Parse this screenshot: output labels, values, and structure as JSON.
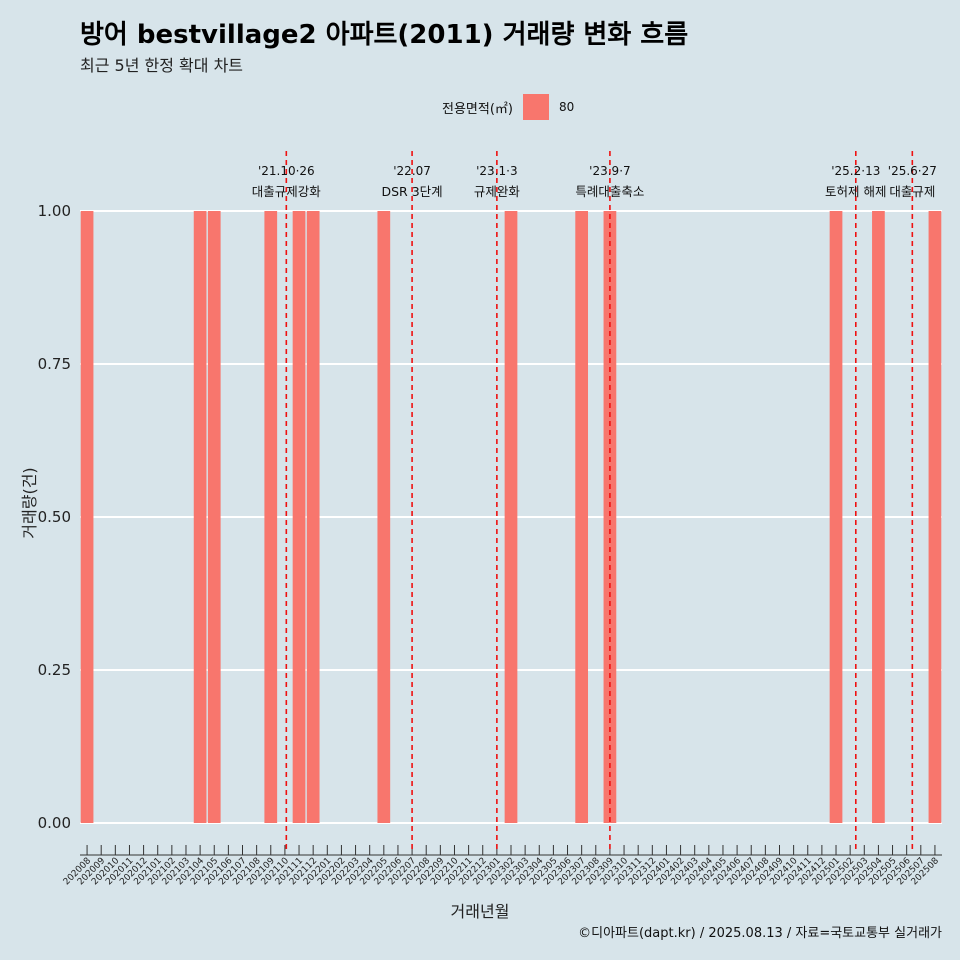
{
  "title": "방어 bestvillage2 아파트(2011) 거래량 변화 흐름",
  "subtitle": "최근 5년 한정 확대 차트",
  "legend": {
    "title": "전용면적(㎡)",
    "label": "80",
    "color": "#f8766d"
  },
  "caption": "©디아파트(dapt.kr) / 2025.08.13 / 자료=국토교통부 실거래가",
  "chart_data": {
    "type": "bar",
    "title": "방어 bestvillage2 아파트(2011) 거래량 변화 흐름",
    "xlabel": "거래년월",
    "ylabel": "거래량(건)",
    "ylim": [
      0,
      1
    ],
    "yticks": [
      "0.00",
      "0.25",
      "0.50",
      "0.75",
      "1.00"
    ],
    "categories": [
      "202008",
      "202009",
      "202010",
      "202011",
      "202012",
      "202101",
      "202102",
      "202103",
      "202104",
      "202105",
      "202106",
      "202107",
      "202108",
      "202109",
      "202110",
      "202111",
      "202112",
      "202201",
      "202202",
      "202203",
      "202204",
      "202205",
      "202206",
      "202207",
      "202208",
      "202209",
      "202210",
      "202211",
      "202212",
      "202301",
      "202302",
      "202303",
      "202304",
      "202305",
      "202306",
      "202307",
      "202308",
      "202309",
      "202310",
      "202311",
      "202312",
      "202401",
      "202402",
      "202403",
      "202404",
      "202405",
      "202406",
      "202407",
      "202408",
      "202409",
      "202410",
      "202411",
      "202412",
      "202501",
      "202502",
      "202503",
      "202504",
      "202505",
      "202506",
      "202507",
      "202508"
    ],
    "series": [
      {
        "name": "80",
        "values": [
          1,
          0,
          0,
          0,
          0,
          0,
          0,
          0,
          1,
          1,
          0,
          0,
          0,
          1,
          0,
          1,
          1,
          0,
          0,
          0,
          0,
          1,
          0,
          0,
          0,
          0,
          0,
          0,
          0,
          0,
          1,
          0,
          0,
          0,
          0,
          1,
          0,
          1,
          0,
          0,
          0,
          0,
          0,
          0,
          0,
          0,
          0,
          0,
          0,
          0,
          0,
          0,
          0,
          1,
          0,
          0,
          1,
          0,
          0,
          0,
          1
        ]
      }
    ],
    "annotations": [
      {
        "date": "'21.10·26",
        "label": "대출규제강화",
        "x": 14.1
      },
      {
        "date": "'22.07",
        "label": "DSR 3단계",
        "x": 23.0
      },
      {
        "date": "'23.1·3",
        "label": "규제완화",
        "x": 29.0
      },
      {
        "date": "'23.9·7",
        "label": "특례대출축소",
        "x": 37.0
      },
      {
        "date": "'25.2·13",
        "label": "토허제 해제",
        "x": 54.4
      },
      {
        "date": "'25.6·27",
        "label": "대출규제",
        "x": 58.4
      }
    ]
  }
}
